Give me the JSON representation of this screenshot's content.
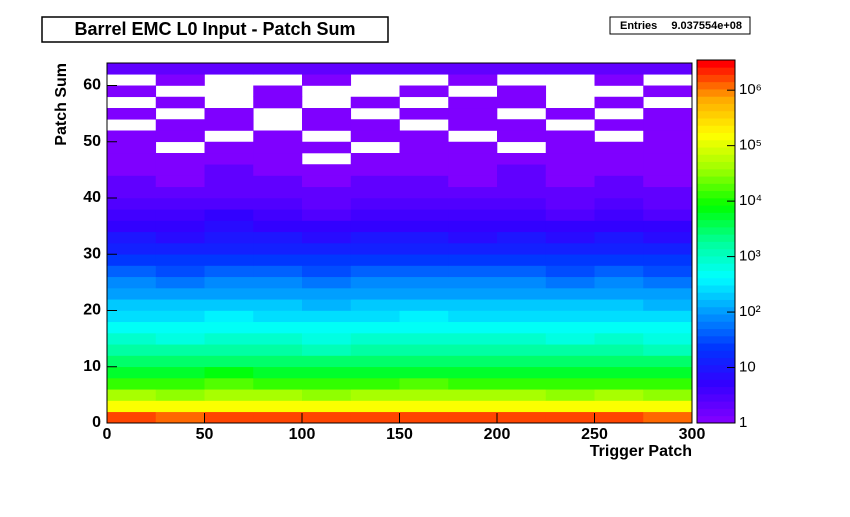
{
  "chart_data": {
    "type": "heatmap",
    "title": "Barrel EMC L0 Input - Patch Sum",
    "stats": {
      "label": "Entries",
      "value": "9.037554e+08"
    },
    "x_label": "Trigger Patch",
    "y_label": "Patch Sum",
    "xlim": [
      0,
      300
    ],
    "ylim": [
      0,
      64
    ],
    "xticks": [
      0,
      50,
      100,
      150,
      200,
      250,
      300
    ],
    "yticks": [
      0,
      10,
      20,
      30,
      40,
      50,
      60
    ],
    "xbins": [
      0,
      25,
      50,
      75,
      100,
      125,
      150,
      175,
      200,
      225,
      250,
      275,
      300
    ],
    "ybins": [
      0,
      2,
      4,
      6,
      8,
      10,
      12,
      14,
      16,
      18,
      20,
      22,
      24,
      26,
      28,
      30,
      32,
      34,
      36,
      38,
      40,
      42,
      44,
      46,
      48,
      50,
      52,
      54,
      56,
      58,
      60,
      62,
      64
    ],
    "z": [
      [
        1500000,
        1400000,
        1600000,
        1500000,
        1550000,
        1450000,
        1500000,
        1600000,
        1500000,
        1450000,
        1500000,
        1400000
      ],
      [
        150000,
        140000,
        160000,
        150000,
        130000,
        150000,
        155000,
        145000,
        150000,
        140000,
        150000,
        135000
      ],
      [
        40000,
        38000,
        42000,
        40000,
        36000,
        40000,
        41000,
        39000,
        40000,
        38000,
        40000,
        37000
      ],
      [
        15000,
        14000,
        16000,
        15000,
        13000,
        15000,
        15500,
        14500,
        15000,
        14000,
        15000,
        13500
      ],
      [
        6000,
        5600,
        6400,
        6000,
        5200,
        6000,
        6200,
        5800,
        6000,
        5600,
        6000,
        5400
      ],
      [
        3000,
        2800,
        3200,
        3000,
        2600,
        3000,
        3100,
        2900,
        3000,
        2800,
        3000,
        2700
      ],
      [
        1500,
        1400,
        1600,
        1500,
        1300,
        1500,
        1550,
        1450,
        1500,
        1400,
        1500,
        1350
      ],
      [
        800,
        750,
        850,
        800,
        700,
        800,
        820,
        780,
        800,
        750,
        800,
        720
      ],
      [
        500,
        470,
        530,
        500,
        440,
        500,
        510,
        490,
        500,
        470,
        500,
        450
      ],
      [
        300,
        280,
        320,
        300,
        260,
        300,
        310,
        290,
        300,
        280,
        300,
        270
      ],
      [
        180,
        170,
        190,
        180,
        160,
        180,
        185,
        175,
        180,
        170,
        180,
        165
      ],
      [
        110,
        100,
        120,
        110,
        95,
        110,
        115,
        105,
        110,
        100,
        110,
        100
      ],
      [
        70,
        65,
        75,
        70,
        60,
        70,
        72,
        68,
        70,
        65,
        70,
        62
      ],
      [
        40,
        37,
        43,
        40,
        35,
        40,
        41,
        39,
        40,
        37,
        40,
        36
      ],
      [
        25,
        23,
        27,
        25,
        22,
        25,
        26,
        24,
        25,
        23,
        25,
        22
      ],
      [
        14,
        13,
        15,
        14,
        12,
        14,
        15,
        13,
        14,
        13,
        14,
        12
      ],
      [
        9,
        8,
        10,
        9,
        8,
        9,
        9,
        8,
        9,
        8,
        9,
        8
      ],
      [
        6,
        5,
        7,
        6,
        5,
        6,
        6,
        5,
        6,
        5,
        6,
        5
      ],
      [
        4,
        4,
        5,
        4,
        3,
        4,
        4,
        4,
        4,
        3,
        4,
        3
      ],
      [
        3,
        3,
        3,
        3,
        2,
        3,
        3,
        3,
        3,
        2,
        3,
        2
      ],
      [
        2,
        2,
        2,
        2,
        2,
        2,
        2,
        2,
        2,
        2,
        2,
        2
      ],
      [
        2,
        1,
        2,
        2,
        1,
        2,
        2,
        1,
        2,
        1,
        2,
        1
      ],
      [
        1,
        1,
        2,
        1,
        1,
        1,
        1,
        1,
        2,
        1,
        1,
        1
      ],
      [
        1,
        1,
        1,
        1,
        0,
        1,
        1,
        1,
        1,
        1,
        1,
        1
      ],
      [
        1,
        0,
        1,
        1,
        1,
        0,
        1,
        1,
        0,
        1,
        1,
        1
      ],
      [
        1,
        1,
        0,
        1,
        0,
        1,
        1,
        0,
        1,
        1,
        0,
        1
      ],
      [
        0,
        1,
        1,
        0,
        1,
        1,
        0,
        1,
        1,
        0,
        1,
        1
      ],
      [
        1,
        0,
        1,
        0,
        1,
        0,
        1,
        1,
        0,
        1,
        0,
        1
      ],
      [
        0,
        1,
        0,
        1,
        0,
        1,
        0,
        1,
        1,
        0,
        1,
        0
      ],
      [
        1,
        0,
        0,
        1,
        0,
        0,
        1,
        0,
        1,
        0,
        0,
        1
      ],
      [
        0,
        1,
        0,
        0,
        1,
        0,
        0,
        1,
        0,
        0,
        1,
        0
      ],
      [
        2,
        2,
        2,
        2,
        2,
        2,
        2,
        2,
        2,
        2,
        2,
        2
      ]
    ],
    "zlim": [
      1,
      3500000
    ],
    "zticks": [
      1,
      10,
      {
        "value": 100,
        "label": "10²"
      },
      {
        "value": 1000,
        "label": "10³"
      },
      {
        "value": 10000,
        "label": "10⁴"
      },
      {
        "value": 100000,
        "label": "10⁵"
      },
      {
        "value": 1000000,
        "label": "10⁶"
      }
    ],
    "log_z": true,
    "palette": [
      "#7f00ff",
      "#3300ff",
      "#0033ff",
      "#0099ff",
      "#00ffff",
      "#00ff99",
      "#00ff00",
      "#99ff00",
      "#ffff00",
      "#ffaa00",
      "#ff0000"
    ]
  }
}
